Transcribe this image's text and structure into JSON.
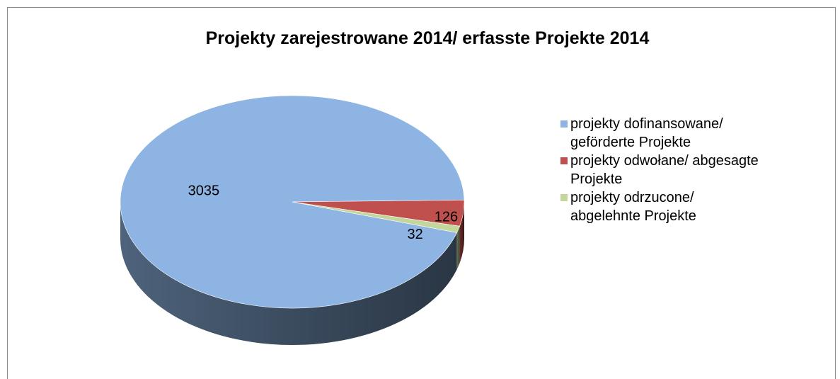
{
  "chart_data": {
    "type": "pie",
    "title": "Projekty zarejestrowane 2014/ erfasste Projekte 2014",
    "categories": [
      "projekty dofinansowane/ geförderte Projekte",
      "projekty odwołane/ abgesagte Projekte",
      "projekty odrzucone/ abgelehnte Projekte"
    ],
    "values": [
      3035,
      126,
      32
    ],
    "colors": [
      "#8db4e2",
      "#c0504d",
      "#c3d69b"
    ],
    "legend": "right"
  }
}
